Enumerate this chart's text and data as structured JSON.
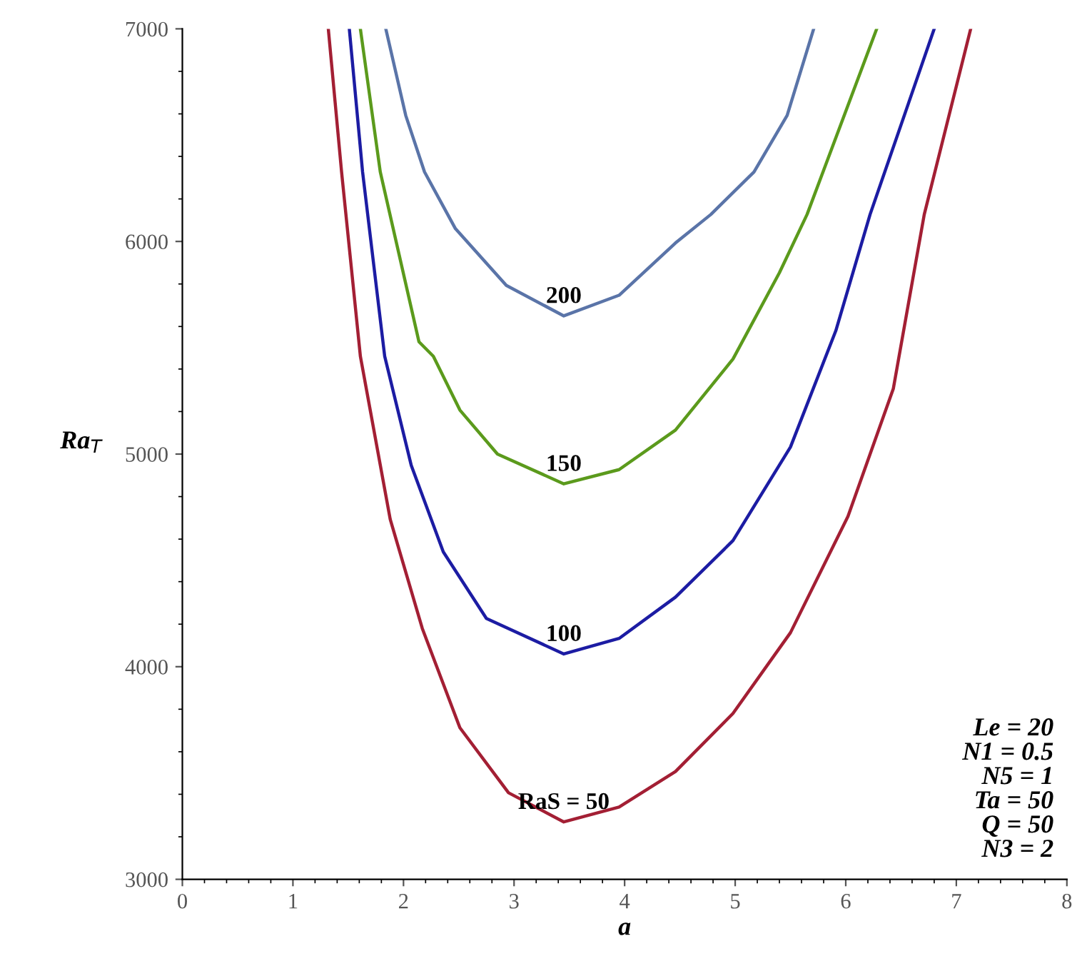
{
  "chart_data": {
    "type": "line",
    "xlabel": "a",
    "ylabel": "Ra$_{T}$",
    "xlim": [
      0,
      8
    ],
    "ylim": [
      3000,
      7000
    ],
    "xticks": [
      0,
      1,
      2,
      3,
      4,
      5,
      6,
      7,
      8
    ],
    "yticks": [
      3000,
      4000,
      5000,
      6000,
      7000
    ],
    "grid": false,
    "legend": false,
    "marker": "none",
    "line_style": "solid",
    "series": [
      {
        "name": "RaS = 50",
        "color": "#a31f34",
        "x": [
          1.32,
          1.44,
          1.61,
          1.88,
          2.17,
          2.51,
          2.95,
          3.45,
          3.95,
          4.46,
          4.98,
          5.5,
          6.02,
          6.43,
          6.71,
          7.13
        ],
        "values": [
          7000,
          6327,
          5460,
          4693,
          4180,
          3713,
          3407,
          3270,
          3340,
          3507,
          3780,
          4160,
          4707,
          5307,
          6127,
          7000
        ]
      },
      {
        "name": "100",
        "color": "#1c1ca3",
        "x": [
          1.51,
          1.63,
          1.83,
          2.07,
          2.36,
          2.75,
          3.45,
          3.95,
          4.46,
          4.98,
          5.5,
          5.91,
          6.22,
          6.8
        ],
        "values": [
          7000,
          6327,
          5460,
          4947,
          4540,
          4227,
          4060,
          4133,
          4327,
          4593,
          5033,
          5580,
          6127,
          7000
        ]
      },
      {
        "name": "150",
        "color": "#5b9a1c",
        "x": [
          1.61,
          1.79,
          2.14,
          2.27,
          2.51,
          2.85,
          3.45,
          3.95,
          4.46,
          4.98,
          5.4,
          5.65,
          6.28
        ],
        "values": [
          7000,
          6327,
          5528,
          5460,
          5207,
          5000,
          4860,
          4927,
          5113,
          5447,
          5853,
          6127,
          7000
        ]
      },
      {
        "name": "200",
        "color": "#5a74a8",
        "x": [
          1.84,
          2.02,
          2.19,
          2.47,
          2.93,
          3.45,
          3.95,
          4.46,
          4.78,
          5.17,
          5.47,
          5.71
        ],
        "values": [
          7000,
          6593,
          6327,
          6060,
          5793,
          5650,
          5747,
          5993,
          6127,
          6327,
          6593,
          7000
        ]
      }
    ],
    "annotations": [
      "Le = 20",
      "N1 = 0.5",
      "N5 = 1",
      "Ta = 50",
      "Q = 50",
      "N3 = 2"
    ]
  }
}
